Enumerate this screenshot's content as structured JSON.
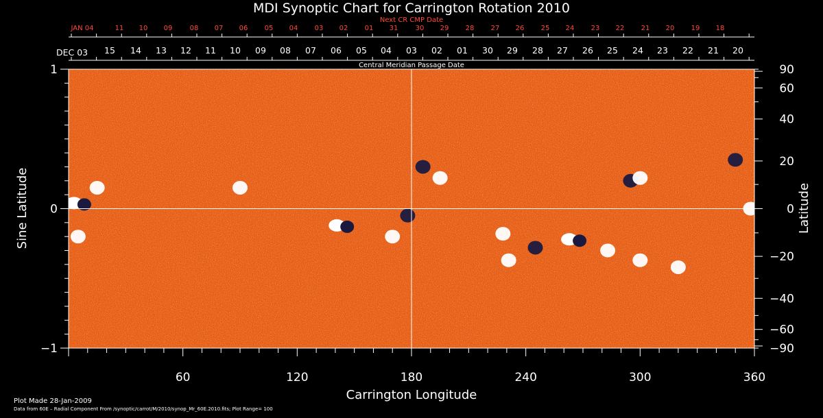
{
  "chart_data": {
    "type": "heatmap",
    "title": "MDI Synoptic Chart for Carrington Rotation 2010",
    "subtitle": "Central Meridian Passage Date",
    "xlabel": "Carrington Longitude",
    "ylabel_left": "Sine Latitude",
    "ylabel_right": "Latitude",
    "xlim": [
      0,
      360
    ],
    "ylim": [
      -1,
      1
    ],
    "x_ticks": [
      "60",
      "120",
      "180",
      "240",
      "300",
      "360"
    ],
    "x_tick_values": [
      60,
      120,
      180,
      240,
      300,
      360
    ],
    "left_ticks": [
      "1",
      "0",
      "−1"
    ],
    "left_tick_values": [
      1,
      0,
      -1
    ],
    "right_ticks": [
      "90",
      "60",
      "40",
      "20",
      "0",
      "−20",
      "−40",
      "−60",
      "−90"
    ],
    "right_tick_values": [
      90,
      60,
      40,
      20,
      0,
      -20,
      -40,
      -60,
      -90
    ],
    "cmp_dates_top_label": "Next CR CMP Date",
    "cmp_dates_top": [
      "JAN 04",
      "11",
      "10",
      "09",
      "08",
      "07",
      "06",
      "05",
      "04",
      "03",
      "02",
      "01",
      "31",
      "30",
      "29",
      "28",
      "27",
      "26",
      "25",
      "24",
      "23",
      "22",
      "21",
      "20",
      "19",
      "18"
    ],
    "cmp_dates_bottom_start": "DEC 03",
    "cmp_dates_bottom": [
      "15",
      "14",
      "13",
      "12",
      "11",
      "10",
      "09",
      "08",
      "07",
      "06",
      "05",
      "04",
      "03",
      "02",
      "01",
      "30",
      "29",
      "28",
      "27",
      "26",
      "25",
      "24",
      "23",
      "22",
      "21",
      "20"
    ],
    "grid_lines": {
      "longitude": 180,
      "sine_latitude": 0
    },
    "active_regions": [
      {
        "lon": 5,
        "lat_sin": 0.04,
        "polarity": "mixed"
      },
      {
        "lon": 5,
        "lat_sin": -0.2,
        "polarity": "positive"
      },
      {
        "lon": 15,
        "lat_sin": 0.15,
        "polarity": "positive"
      },
      {
        "lon": 90,
        "lat_sin": 0.15,
        "polarity": "positive"
      },
      {
        "lon": 143,
        "lat_sin": -0.12,
        "polarity": "mixed"
      },
      {
        "lon": 170,
        "lat_sin": -0.2,
        "polarity": "positive"
      },
      {
        "lon": 178,
        "lat_sin": -0.05,
        "polarity": "negative"
      },
      {
        "lon": 186,
        "lat_sin": 0.3,
        "polarity": "negative"
      },
      {
        "lon": 195,
        "lat_sin": 0.22,
        "polarity": "positive"
      },
      {
        "lon": 228,
        "lat_sin": -0.18,
        "polarity": "positive"
      },
      {
        "lon": 231,
        "lat_sin": -0.37,
        "polarity": "positive"
      },
      {
        "lon": 245,
        "lat_sin": -0.28,
        "polarity": "negative"
      },
      {
        "lon": 265,
        "lat_sin": -0.22,
        "polarity": "mixed"
      },
      {
        "lon": 283,
        "lat_sin": -0.3,
        "polarity": "positive"
      },
      {
        "lon": 295,
        "lat_sin": 0.2,
        "polarity": "negative"
      },
      {
        "lon": 300,
        "lat_sin": 0.22,
        "polarity": "positive"
      },
      {
        "lon": 300,
        "lat_sin": -0.37,
        "polarity": "positive"
      },
      {
        "lon": 320,
        "lat_sin": -0.42,
        "polarity": "positive"
      },
      {
        "lon": 350,
        "lat_sin": 0.35,
        "polarity": "negative"
      },
      {
        "lon": 358,
        "lat_sin": 0.0,
        "polarity": "positive"
      }
    ],
    "colors": {
      "background": "#000000",
      "field_base": "#e84a12",
      "positive": "#ffffff",
      "negative": "#1a1a40",
      "top_date_text": "#ff4a3a",
      "text": "#ffffff"
    }
  },
  "footer": {
    "plot_made": "Plot Made 28-Jan-2009",
    "data_from": "Data from 60E – Radial Component From /synoptic/carrot/M/2010/synop_Mr_60E.2010.fits; Plot Range= 100"
  }
}
